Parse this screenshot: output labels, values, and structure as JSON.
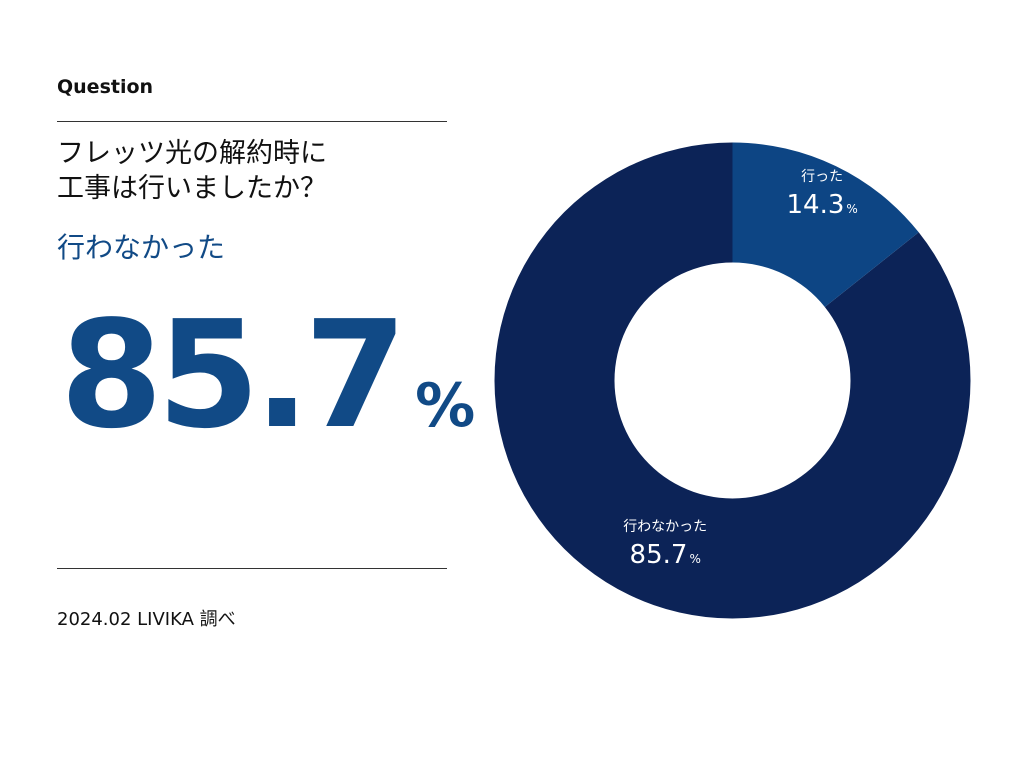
{
  "header": {
    "label": "Question",
    "question_line1": "フレッツ光の解約時に",
    "question_line2": "工事は行いましたか？"
  },
  "highlight": {
    "label": "行わなかった",
    "value": "85.7",
    "unit": "%"
  },
  "footer": {
    "source": "2024.02 LIVIKA 調べ"
  },
  "colors": {
    "accent": "#114a86",
    "slice_major": "#0c2357",
    "slice_minor": "#0d4584"
  },
  "chart_data": {
    "type": "pie",
    "variant": "donut",
    "title": "",
    "slices": [
      {
        "name": "行わなかった",
        "value": 85.7,
        "label_value": "85.7",
        "unit": "%",
        "color": "#0c2357"
      },
      {
        "name": "行った",
        "value": 14.3,
        "label_value": "14.3",
        "unit": "%",
        "color": "#0d4584"
      }
    ],
    "start": "12 o'clock",
    "direction": "counterclockwise"
  }
}
